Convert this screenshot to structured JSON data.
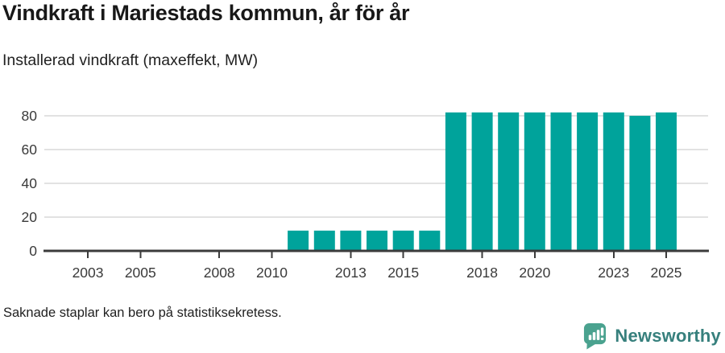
{
  "title": "Vindkraft i Mariestads kommun, år för år",
  "subtitle": "Installerad vindkraft (maxeffekt, MW)",
  "footnote": "Saknade staplar kan bero på statistiksekretess.",
  "branding": {
    "logo_text": "Newsworthy",
    "icon_color": "#4aa28f",
    "text_color": "#37807d"
  },
  "chart_data": {
    "type": "bar",
    "title": "Vindkraft i Mariestads kommun, år för år",
    "subtitle": "Installerad vindkraft (maxeffekt, MW)",
    "unit": "MW",
    "categories": [
      2002,
      2003,
      2004,
      2005,
      2006,
      2007,
      2008,
      2009,
      2010,
      2011,
      2012,
      2013,
      2014,
      2015,
      2016,
      2017,
      2018,
      2019,
      2020,
      2021,
      2022,
      2023,
      2024,
      2025
    ],
    "values": [
      null,
      null,
      null,
      null,
      null,
      null,
      null,
      null,
      null,
      12,
      12,
      12,
      12,
      12,
      12,
      82,
      82,
      82,
      82,
      82,
      82,
      82,
      80,
      82
    ],
    "x_tick_labels": [
      "2003",
      "2005",
      "2008",
      "2010",
      "2013",
      "2015",
      "2018",
      "2020",
      "2023",
      "2025"
    ],
    "y_ticks": [
      0,
      20,
      40,
      60,
      80
    ],
    "ylim": [
      0,
      88
    ],
    "grid": "horizontal",
    "legend": "none",
    "bar_color": "#00a39b",
    "axis_color": "#3b3b3b",
    "gridline_color": "#e2e2e2",
    "missing_note": "Saknade staplar kan bero på statistiksekretess."
  }
}
